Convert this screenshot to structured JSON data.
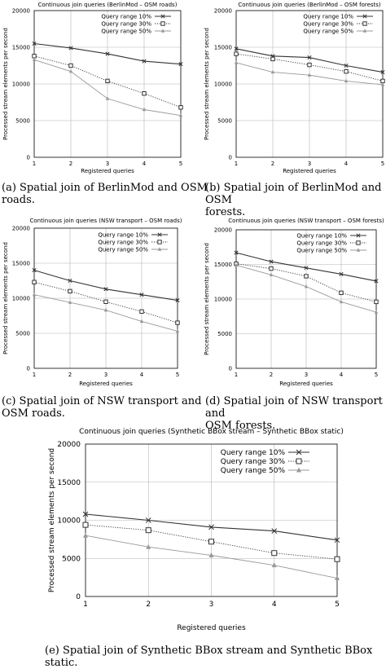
{
  "chart_data": [
    {
      "type": "line",
      "title": "Continuous join queries (BerlinMod – OSM roads)",
      "xlabel": "Registered queries",
      "ylabel": "Processed stream elements per second",
      "x": [
        1,
        2,
        3,
        4,
        5
      ],
      "xticks": [
        "1",
        "2",
        "3",
        "4",
        "5"
      ],
      "yticks": [
        "0",
        "5000",
        "10000",
        "15000",
        "20000"
      ],
      "xlim": [
        1,
        5
      ],
      "ylim": [
        0,
        20000
      ],
      "grid": true,
      "legend": "top-right",
      "series": [
        {
          "name": "Query range 10%",
          "values": [
            15500,
            14900,
            14100,
            13100,
            12700
          ]
        },
        {
          "name": "Query range 30%",
          "values": [
            13800,
            12500,
            10400,
            8700,
            6800
          ]
        },
        {
          "name": "Query range 50%",
          "values": [
            13300,
            11700,
            8000,
            6500,
            5700
          ]
        }
      ],
      "caption": "(a) Spatial join of BerlinMod and OSM\nroads."
    },
    {
      "type": "line",
      "title": "Continuous join queries (BerlinMod – OSM forests)",
      "xlabel": "Registered queries",
      "ylabel": "Processed stream elements per second",
      "x": [
        1,
        2,
        3,
        4,
        5
      ],
      "xticks": [
        "1",
        "2",
        "3",
        "4",
        "5"
      ],
      "yticks": [
        "0",
        "5000",
        "10000",
        "15000",
        "20000"
      ],
      "xlim": [
        1,
        5
      ],
      "ylim": [
        0,
        20000
      ],
      "grid": true,
      "legend": "top-right",
      "series": [
        {
          "name": "Query range 10%",
          "values": [
            14800,
            13800,
            13600,
            12500,
            11600
          ]
        },
        {
          "name": "Query range 30%",
          "values": [
            14100,
            13400,
            12600,
            11700,
            10400
          ]
        },
        {
          "name": "Query range 50%",
          "values": [
            12900,
            11600,
            11200,
            10400,
            9900
          ]
        }
      ],
      "caption": "(b) Spatial join of BerlinMod and OSM\nforests."
    },
    {
      "type": "line",
      "title": "Continuous join queries (NSW transport – OSM roads)",
      "xlabel": "Registered queries",
      "ylabel": "Processed stream elements per second",
      "x": [
        1,
        2,
        3,
        4,
        5
      ],
      "xticks": [
        "1",
        "2",
        "3",
        "4",
        "5"
      ],
      "yticks": [
        "0",
        "5000",
        "10000",
        "15000",
        "20000"
      ],
      "xlim": [
        1,
        5
      ],
      "ylim": [
        0,
        20000
      ],
      "grid": true,
      "legend": "top-right",
      "series": [
        {
          "name": "Query range 10%",
          "values": [
            14000,
            12500,
            11300,
            10500,
            9700
          ]
        },
        {
          "name": "Query range 30%",
          "values": [
            12300,
            11000,
            9500,
            8100,
            6500
          ]
        },
        {
          "name": "Query range 50%",
          "values": [
            10500,
            9400,
            8300,
            6700,
            5300
          ]
        }
      ],
      "caption": "(c) Spatial join of NSW transport and\nOSM roads."
    },
    {
      "type": "line",
      "title": "Continuous join queries (NSW transport – OSM forests)",
      "xlabel": "Registered queries",
      "ylabel": "Processed stream elements per second",
      "x": [
        1,
        2,
        3,
        4,
        5
      ],
      "xticks": [
        "1",
        "2",
        "3",
        "4",
        "5"
      ],
      "yticks": [
        "0",
        "5000",
        "10000",
        "15000",
        "20000"
      ],
      "xlim": [
        1,
        5
      ],
      "ylim": [
        0,
        20000
      ],
      "grid": true,
      "legend": "top-right",
      "series": [
        {
          "name": "Query range 10%",
          "values": [
            16700,
            15400,
            14500,
            13600,
            12600
          ]
        },
        {
          "name": "Query range 30%",
          "values": [
            15100,
            14400,
            13300,
            10900,
            9600
          ]
        },
        {
          "name": "Query range 50%",
          "values": [
            14900,
            13500,
            11800,
            9600,
            8100
          ]
        }
      ],
      "caption": "(d) Spatial join of NSW transport and\nOSM forests."
    },
    {
      "type": "line",
      "title": "Continuous join queries (Synthetic BBox stream – Synthetic BBox static)",
      "xlabel": "Registered queries",
      "ylabel": "Processed stream elements per second",
      "x": [
        1,
        2,
        3,
        4,
        5
      ],
      "xticks": [
        "1",
        "2",
        "3",
        "4",
        "5"
      ],
      "yticks": [
        "0",
        "5000",
        "10000",
        "15000",
        "20000"
      ],
      "xlim": [
        1,
        5
      ],
      "ylim": [
        0,
        20000
      ],
      "grid": true,
      "legend": "top-right",
      "series": [
        {
          "name": "Query range 10%",
          "values": [
            10800,
            10000,
            9100,
            8600,
            7400
          ]
        },
        {
          "name": "Query range 30%",
          "values": [
            9400,
            8700,
            7200,
            5700,
            4900
          ]
        },
        {
          "name": "Query range 50%",
          "values": [
            8000,
            6500,
            5400,
            4100,
            2400
          ]
        }
      ],
      "caption": "(e) Spatial join of Synthetic BBox stream and Synthetic BBox\nstatic."
    }
  ],
  "style": {
    "series_colors": [
      "#333333",
      "#333333",
      "#999999"
    ],
    "series_dash": [
      "solid",
      "dotted",
      "solid"
    ],
    "series_markers": [
      "cross-x-icon",
      "open-square-icon",
      "filled-triangle-icon"
    ]
  }
}
